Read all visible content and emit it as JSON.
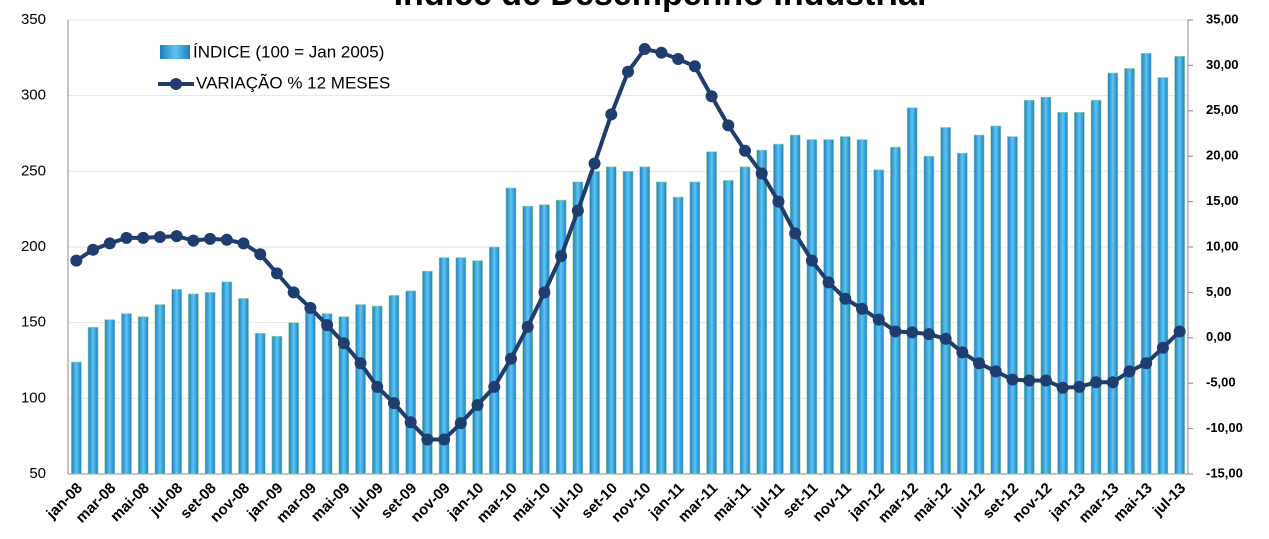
{
  "chart_data": {
    "type": "bar_line",
    "title": "Índice de Desempenho Industrial",
    "categories": [
      "jan-08",
      null,
      "mar-08",
      null,
      "mai-08",
      null,
      "jul-08",
      null,
      "set-08",
      null,
      "nov-08",
      null,
      "jan-09",
      null,
      "mar-09",
      null,
      "mai-09",
      null,
      "jul-09",
      null,
      "set-09",
      null,
      "nov-09",
      null,
      "jan-10",
      null,
      "mar-10",
      null,
      "mai-10",
      null,
      "jul-10",
      null,
      "set-10",
      null,
      "nov-10",
      null,
      "jan-11",
      null,
      "mar-11",
      null,
      "mai-11",
      null,
      "jul-11",
      null,
      "set-11",
      null,
      "nov-11",
      null,
      "jan-12",
      null,
      "mar-12",
      null,
      "mai-12",
      null,
      "jul-12",
      null,
      "set-12",
      null,
      "nov-12",
      null,
      "jan-13",
      null,
      "mar-13",
      null,
      "mai-13",
      null,
      "jul-13"
    ],
    "series": [
      {
        "name": "ÍNDICE (100 = Jan 2005)",
        "color": "#41aee6",
        "axis": "y",
        "values": [
          124,
          147,
          152,
          156,
          154,
          162,
          172,
          169,
          170,
          177,
          166,
          143,
          141,
          150,
          157,
          156,
          154,
          162,
          161,
          168,
          171,
          184,
          193,
          193,
          191,
          200,
          239,
          227,
          228,
          231,
          243,
          250,
          253,
          250,
          253,
          243,
          233,
          243,
          263,
          244,
          253,
          264,
          268,
          274,
          271,
          271,
          273,
          271,
          251,
          266,
          292,
          260,
          279,
          262,
          274,
          280,
          273,
          297,
          299,
          289,
          289,
          297,
          315,
          318,
          328,
          312,
          326
        ]
      },
      {
        "name": "VARIAÇÃO % 12 MESES",
        "color": "#1f3d6e",
        "axis": "y2",
        "values": [
          8.5,
          9.7,
          10.4,
          11,
          11,
          11.1,
          11.2,
          10.7,
          10.9,
          10.8,
          10.4,
          9.2,
          7.1,
          5,
          3.3,
          1.4,
          -0.6,
          -2.8,
          -5.4,
          -7.2,
          -9.3,
          -11.2,
          -11.2,
          -9.4,
          -7.4,
          -5.4,
          -2.3,
          1.2,
          5,
          9,
          14,
          19.2,
          24.6,
          29.3,
          31.8,
          31.4,
          30.7,
          29.9,
          26.6,
          23.4,
          20.6,
          18.1,
          15,
          11.5,
          8.5,
          6.1,
          4.3,
          3.2,
          2,
          0.7,
          0.6,
          0.4,
          -0.1,
          -1.6,
          -2.8,
          -3.7,
          -4.6,
          -4.7,
          -4.7,
          -5.5,
          -5.4,
          -4.9,
          -4.9,
          -3.7,
          -2.8,
          -1.1,
          0.7
        ]
      }
    ],
    "ylim": [
      50,
      350
    ],
    "yticks": [
      50,
      100,
      150,
      200,
      250,
      300,
      350
    ],
    "y2lim": [
      -15,
      35
    ],
    "y2ticks": [
      {
        "value": -15,
        "label": "-15,00"
      },
      {
        "value": -10,
        "label": "-10,00"
      },
      {
        "value": -5,
        "label": "-5,00"
      },
      {
        "value": 0,
        "label": "0,00"
      },
      {
        "value": 5,
        "label": "5,00"
      },
      {
        "value": 10,
        "label": "10,00"
      },
      {
        "value": 15,
        "label": "15,00"
      },
      {
        "value": 20,
        "label": "20,00"
      },
      {
        "value": 25,
        "label": "25,00"
      },
      {
        "value": 30,
        "label": "30,00"
      },
      {
        "value": 35,
        "label": "35,00"
      }
    ],
    "grid": true,
    "legend": "top-left"
  }
}
